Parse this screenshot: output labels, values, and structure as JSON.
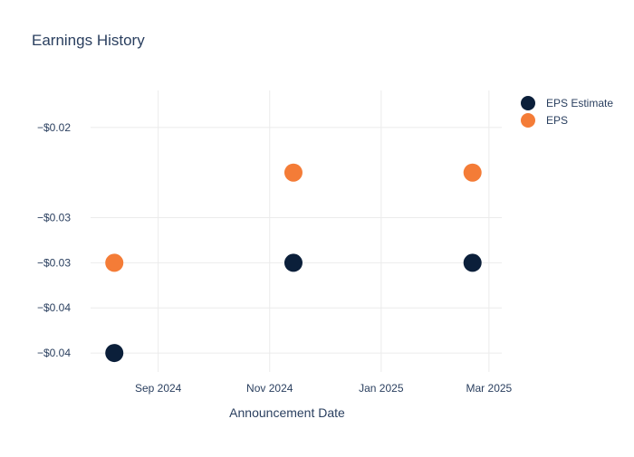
{
  "chart_data": {
    "type": "scatter",
    "title": "Earnings History",
    "xlabel": "Announcement Date",
    "ylabel": "",
    "x_axis_type": "date",
    "x_ticks": [
      "2024-09-01",
      "2024-11-01",
      "2025-01-01",
      "2025-03-01"
    ],
    "x_tick_labels": [
      "Sep 2024",
      "Nov 2024",
      "Jan 2025",
      "Mar 2025"
    ],
    "y_ticks": [
      -0.02,
      -0.03,
      -0.035,
      -0.04,
      -0.045
    ],
    "y_tick_labels": [
      "−$0.02",
      "−$0.03",
      "−$0.03",
      "−$0.04",
      "−$0.04"
    ],
    "ylim": [
      -0.0471,
      -0.0159
    ],
    "xlim": [
      "2024-07-26",
      "2025-03-08"
    ],
    "grid": true,
    "legend_position": "top-right",
    "series": [
      {
        "name": "EPS Estimate",
        "color": "#0b1f3a",
        "points": [
          {
            "x": "2024-08-08",
            "y": -0.045
          },
          {
            "x": "2024-11-14",
            "y": -0.035
          },
          {
            "x": "2025-02-20",
            "y": -0.035
          }
        ]
      },
      {
        "name": "EPS",
        "color": "#f47c37",
        "points": [
          {
            "x": "2024-08-08",
            "y": -0.035
          },
          {
            "x": "2024-11-14",
            "y": -0.025
          },
          {
            "x": "2025-02-20",
            "y": -0.025
          }
        ]
      }
    ]
  }
}
